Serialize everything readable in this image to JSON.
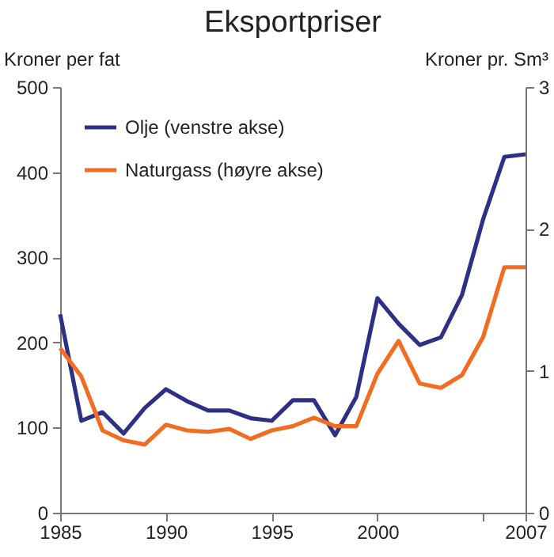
{
  "chart_data": {
    "type": "line",
    "title": "Eksportpriser",
    "ylabel": "Kroner per fat",
    "y2label": "Kroner pr. Sm³",
    "x": [
      1985,
      1986,
      1987,
      1988,
      1989,
      1990,
      1991,
      1992,
      1993,
      1994,
      1995,
      1996,
      1997,
      1998,
      1999,
      2000,
      2001,
      2002,
      2003,
      2004,
      2005,
      2006,
      2007
    ],
    "series": [
      {
        "name": "Olje (venstre akse)",
        "color": "#2e3085",
        "values": [
          233,
          108,
          118,
          93,
          123,
          145,
          131,
          120,
          120,
          111,
          108,
          132,
          132,
          91,
          136,
          252,
          222,
          197,
          206,
          256,
          345,
          418,
          421
        ]
      },
      {
        "name": "Naturgass (høyre akse)",
        "color": "#f26d21",
        "axis": "y2",
        "values": [
          1.16,
          0.96,
          0.58,
          0.51,
          0.48,
          0.62,
          0.58,
          0.57,
          0.59,
          0.52,
          0.58,
          0.61,
          0.67,
          0.61,
          0.61,
          0.98,
          1.21,
          0.91,
          0.88,
          0.97,
          1.24,
          1.73,
          1.73
        ]
      }
    ],
    "xlim": [
      1985,
      2007
    ],
    "xticks": [
      1985,
      1990,
      1995,
      2000,
      {
        "value": 2005,
        "label": null
      },
      2007
    ],
    "ylim": [
      0,
      500
    ],
    "yticks": [
      0,
      100,
      200,
      300,
      400,
      500
    ],
    "y2lim": [
      0,
      3
    ],
    "y2ticks": [
      0,
      1,
      2,
      3
    ],
    "grid": false,
    "legend": "top left",
    "marker": "none",
    "line_style": "solid"
  }
}
